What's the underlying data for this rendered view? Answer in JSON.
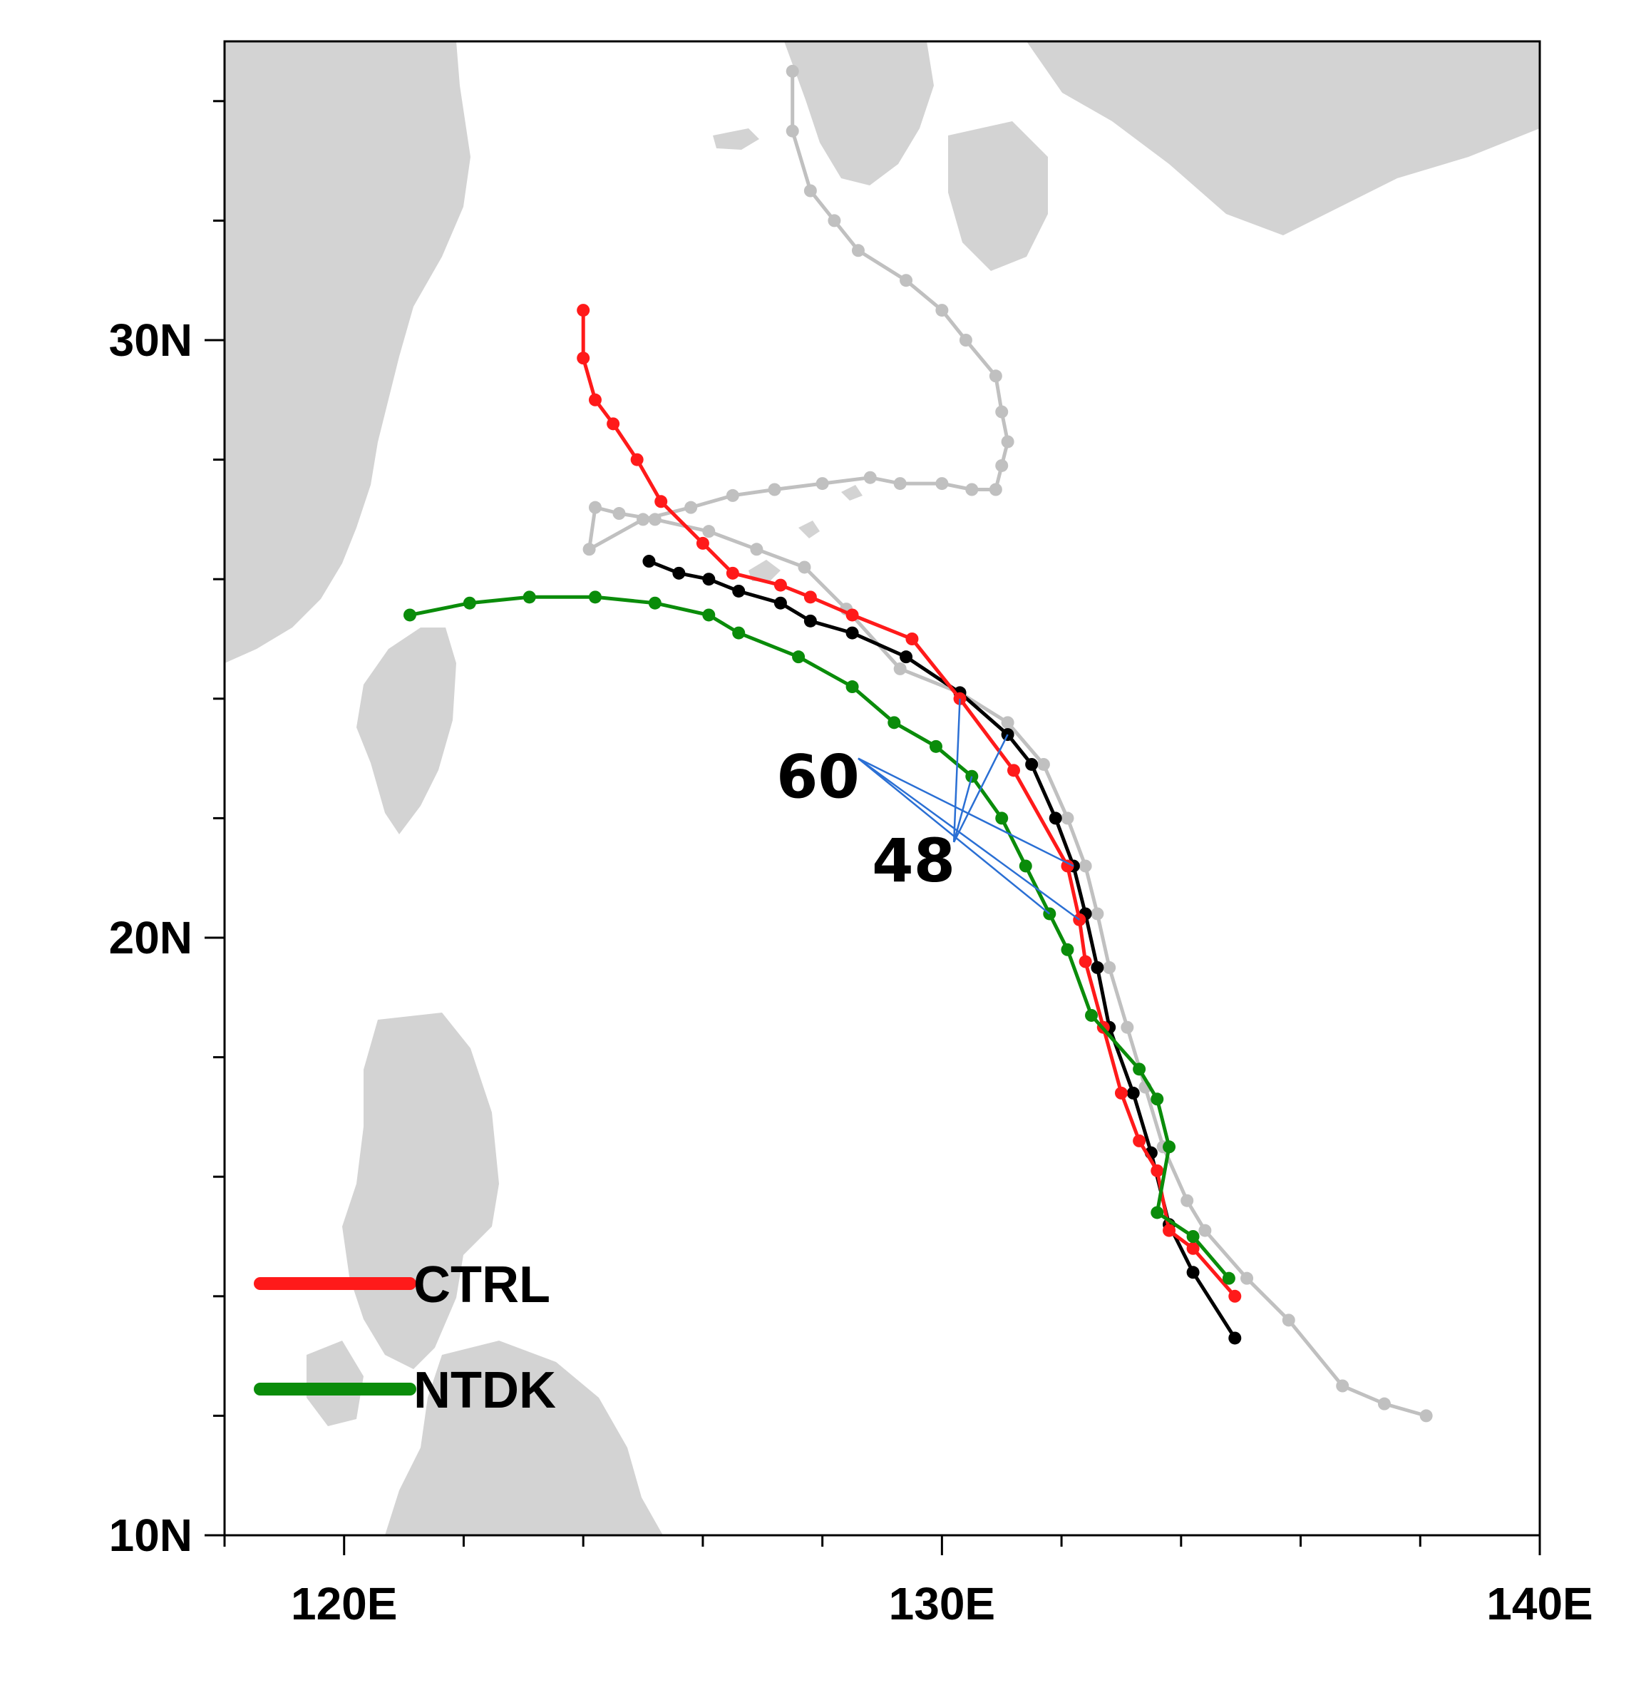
{
  "map": {
    "extent": {
      "lon": [
        118,
        140
      ],
      "lat": [
        10,
        35
      ]
    },
    "lon_ticks": [
      {
        "lon": 120,
        "label": "120E"
      },
      {
        "lon": 130,
        "label": "130E"
      },
      {
        "lon": 140,
        "label": "140E"
      }
    ],
    "lat_ticks": [
      {
        "lat": 10,
        "label": "10N"
      },
      {
        "lat": 20,
        "label": "20N"
      },
      {
        "lat": 30,
        "label": "30N"
      }
    ],
    "minor_lon_step": 2,
    "minor_lat_step": 2,
    "land_color": "#d3d3d3",
    "tracks": [
      {
        "id": "observed",
        "color": "#c0c0c0",
        "points": [
          [
            138.1,
            12.0
          ],
          [
            137.4,
            12.2
          ],
          [
            136.7,
            12.5
          ],
          [
            135.8,
            13.6
          ],
          [
            135.1,
            14.3
          ],
          [
            134.4,
            15.1
          ],
          [
            134.1,
            15.6
          ],
          [
            133.7,
            16.5
          ],
          [
            133.4,
            17.5
          ],
          [
            133.1,
            18.5
          ],
          [
            132.8,
            19.5
          ],
          [
            132.6,
            20.4
          ],
          [
            132.4,
            21.2
          ],
          [
            132.1,
            22.0
          ],
          [
            131.7,
            22.9
          ],
          [
            131.1,
            23.6
          ],
          [
            130.3,
            24.1
          ],
          [
            129.3,
            24.5
          ],
          [
            128.4,
            25.5
          ],
          [
            127.7,
            26.2
          ],
          [
            126.9,
            26.5
          ],
          [
            126.1,
            26.8
          ],
          [
            125.2,
            27.0
          ],
          [
            124.6,
            27.1
          ],
          [
            124.2,
            27.2
          ],
          [
            124.1,
            26.5
          ],
          [
            125.0,
            27.0
          ],
          [
            125.8,
            27.2
          ],
          [
            126.5,
            27.4
          ],
          [
            127.2,
            27.5
          ],
          [
            128.0,
            27.6
          ],
          [
            128.8,
            27.7
          ],
          [
            129.3,
            27.6
          ],
          [
            130.0,
            27.6
          ],
          [
            130.5,
            27.5
          ],
          [
            130.9,
            27.5
          ],
          [
            131.0,
            27.9
          ],
          [
            131.1,
            28.3
          ],
          [
            131.0,
            28.8
          ],
          [
            130.9,
            29.4
          ],
          [
            130.4,
            30.0
          ],
          [
            130.0,
            30.5
          ],
          [
            129.4,
            31.0
          ],
          [
            128.6,
            31.5
          ],
          [
            128.2,
            32.0
          ],
          [
            127.8,
            32.5
          ],
          [
            127.5,
            33.5
          ],
          [
            127.5,
            34.5
          ]
        ]
      },
      {
        "id": "black",
        "color": "#000000",
        "points": [
          [
            134.9,
            13.3
          ],
          [
            134.2,
            14.4
          ],
          [
            133.8,
            15.2
          ],
          [
            133.5,
            16.4
          ],
          [
            133.2,
            17.4
          ],
          [
            132.8,
            18.5
          ],
          [
            132.6,
            19.5
          ],
          [
            132.4,
            20.4
          ],
          [
            132.2,
            21.2
          ],
          [
            131.9,
            22.0
          ],
          [
            131.5,
            22.9
          ],
          [
            131.1,
            23.4
          ],
          [
            130.3,
            24.1
          ],
          [
            129.4,
            24.7
          ],
          [
            128.5,
            25.1
          ],
          [
            127.8,
            25.3
          ],
          [
            127.3,
            25.6
          ],
          [
            126.6,
            25.8
          ],
          [
            126.1,
            26.0
          ],
          [
            125.6,
            26.1
          ],
          [
            125.1,
            26.3
          ]
        ]
      },
      {
        "id": "ctrl",
        "color": "#ff1a1a",
        "points": [
          [
            134.9,
            14.0
          ],
          [
            134.2,
            14.8
          ],
          [
            133.8,
            15.1
          ],
          [
            133.6,
            16.1
          ],
          [
            133.3,
            16.6
          ],
          [
            133.0,
            17.4
          ],
          [
            132.7,
            18.5
          ],
          [
            132.4,
            19.6
          ],
          [
            132.3,
            20.3
          ],
          [
            132.1,
            21.2
          ],
          [
            131.2,
            22.8
          ],
          [
            130.3,
            24.0
          ],
          [
            129.5,
            25.0
          ],
          [
            128.5,
            25.4
          ],
          [
            127.8,
            25.7
          ],
          [
            127.3,
            25.9
          ],
          [
            126.5,
            26.1
          ],
          [
            126.0,
            26.6
          ],
          [
            125.3,
            27.3
          ],
          [
            124.9,
            28.0
          ],
          [
            124.5,
            28.6
          ],
          [
            124.2,
            29.0
          ],
          [
            124.0,
            29.7
          ],
          [
            124.0,
            30.5
          ]
        ]
      },
      {
        "id": "ntdk",
        "color": "#0a8c0a",
        "points": [
          [
            134.8,
            14.3
          ],
          [
            134.2,
            15.0
          ],
          [
            133.6,
            15.4
          ],
          [
            133.8,
            16.5
          ],
          [
            133.6,
            17.3
          ],
          [
            133.3,
            17.8
          ],
          [
            132.5,
            18.7
          ],
          [
            132.1,
            19.8
          ],
          [
            131.8,
            20.4
          ],
          [
            131.4,
            21.2
          ],
          [
            131.0,
            22.0
          ],
          [
            130.5,
            22.7
          ],
          [
            129.9,
            23.2
          ],
          [
            129.2,
            23.6
          ],
          [
            128.5,
            24.2
          ],
          [
            127.6,
            24.7
          ],
          [
            126.6,
            25.1
          ],
          [
            126.1,
            25.4
          ],
          [
            125.2,
            25.6
          ],
          [
            124.2,
            25.7
          ],
          [
            123.1,
            25.7
          ],
          [
            122.1,
            25.6
          ],
          [
            121.1,
            25.4
          ]
        ]
      }
    ],
    "annotations": [
      {
        "text": "60",
        "lon": 128.6,
        "lat": 23.0
      },
      {
        "text": "48",
        "lon": 130.2,
        "lat": 21.6
      }
    ],
    "legend": [
      {
        "label": "CTRL",
        "color": "#ff1a1a"
      },
      {
        "label": "NTDK",
        "color": "#0a8c0a"
      }
    ]
  }
}
